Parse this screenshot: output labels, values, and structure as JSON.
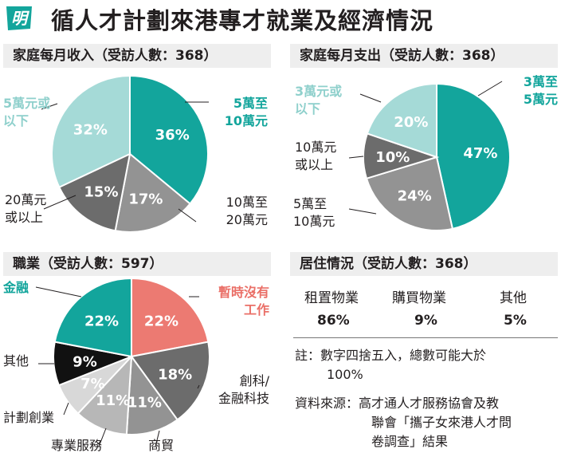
{
  "header": {
    "logo_char": "明",
    "title": "循人才計劃來港專才就業及經濟情況"
  },
  "colors": {
    "teal": "#13a59c",
    "light_teal": "#a5dad7",
    "gray_dark": "#6c6c6c",
    "gray_mid": "#939393",
    "gray_light": "#b7b7b7",
    "gray_pale": "#d8d8d8",
    "red": "#ec7a72",
    "black": "#111111"
  },
  "panels": {
    "income_title": "家庭每月收入（受訪人數：368）",
    "expense_title": "家庭每月支出（受訪人數：368）",
    "occupation_title": "職業（受訪人數：597）",
    "residence_title": "居住情況（受訪人數：368）"
  },
  "chart_data": [
    {
      "type": "pie",
      "title": "家庭每月收入（受訪人數：368）",
      "categories": [
        "5萬至10萬元",
        "10萬至20萬元",
        "20萬元或以上",
        "5萬元或以下"
      ],
      "values": [
        36,
        17,
        15,
        32
      ],
      "value_labels": [
        "36%",
        "17%",
        "15%",
        "32%"
      ],
      "colors": [
        "#13a59c",
        "#939393",
        "#6c6c6c",
        "#a5dad7"
      ],
      "label_colors": [
        "#ffffff",
        "#ffffff",
        "#ffffff",
        "#ffffff"
      ]
    },
    {
      "type": "pie",
      "title": "家庭每月支出（受訪人數：368）",
      "categories": [
        "3萬至5萬元",
        "5萬至10萬元",
        "10萬元或以上",
        "3萬元或以下"
      ],
      "values": [
        47,
        24,
        10,
        20
      ],
      "value_labels": [
        "47%",
        "24%",
        "10%",
        "20%"
      ],
      "colors": [
        "#13a59c",
        "#939393",
        "#6c6c6c",
        "#a5dad7"
      ],
      "label_colors": [
        "#ffffff",
        "#ffffff",
        "#ffffff",
        "#ffffff"
      ]
    },
    {
      "type": "pie",
      "title": "職業（受訪人數：597）",
      "categories": [
        "暫時沒有工作",
        "創科/金融科技",
        "商貿",
        "專業服務",
        "計劃創業",
        "其他",
        "金融"
      ],
      "values": [
        22,
        18,
        11,
        11,
        7,
        9,
        22
      ],
      "value_labels": [
        "22%",
        "18%",
        "11%",
        "11%",
        "7%",
        "9%",
        "22%"
      ],
      "colors": [
        "#ec7a72",
        "#6c6c6c",
        "#939393",
        "#b7b7b7",
        "#d8d8d8",
        "#111111",
        "#13a59c"
      ],
      "label_colors": [
        "#ffffff",
        "#ffffff",
        "#ffffff",
        "#ffffff",
        "#ffffff",
        "#ffffff",
        "#ffffff"
      ]
    },
    {
      "type": "table",
      "title": "居住情況（受訪人數：368）",
      "columns": [
        "租置物業",
        "購買物業",
        "其他"
      ],
      "rows": [
        [
          "86%",
          "9%",
          "5%"
        ]
      ]
    }
  ],
  "income_labels": {
    "slice0": [
      "5萬至",
      "10萬元"
    ],
    "slice1": [
      "10萬至",
      "20萬元"
    ],
    "slice2": [
      "20萬元",
      "或以上"
    ],
    "slice3": [
      "5萬元或",
      "以下"
    ]
  },
  "expense_labels": {
    "slice0": [
      "3萬至",
      "5萬元"
    ],
    "slice1": [
      "5萬至",
      "10萬元"
    ],
    "slice2": [
      "10萬元",
      "或以上"
    ],
    "slice3": [
      "3萬元或",
      "以下"
    ]
  },
  "occupation_labels": {
    "slice0": [
      "暫時沒有",
      "工作"
    ],
    "slice1": [
      "創科/",
      "金融科技"
    ],
    "slice2": "商貿",
    "slice3": "專業服務",
    "slice4": "計劃創業",
    "slice5": "其他",
    "slice6": "金融"
  },
  "notes": {
    "note_lines": [
      "註：數字四捨五入，總數可能大於",
      "100%"
    ],
    "source_lines": [
      "資料來源：高才通人才服務協會及教",
      "聯會「攜子女來港人才問",
      "卷調查」結果"
    ]
  }
}
